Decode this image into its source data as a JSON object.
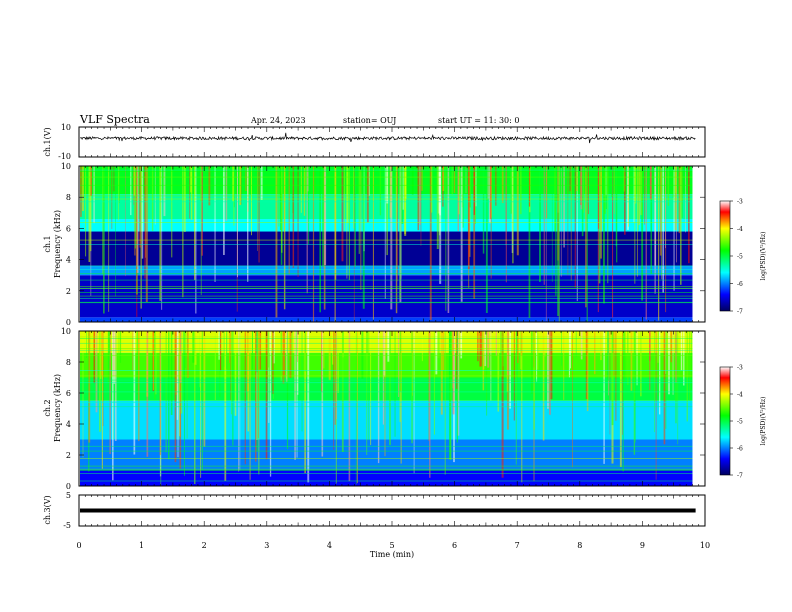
{
  "header": {
    "title": "VLF Spectra",
    "date": "Apr. 24, 2023",
    "station": "station= OUJ",
    "start": "start  UT =   11: 30: 0"
  },
  "xaxis_label": "Time  (min)",
  "chart_data": [
    {
      "type": "line",
      "panel": "ch1-waveform",
      "ylabel": "ch.1(V)",
      "ytick_labels": [
        "10",
        "-10"
      ],
      "ylim": [
        -10,
        10
      ],
      "xlim": [
        0,
        10
      ],
      "trace_level": 2.5,
      "noise_amplitude": 1.0,
      "color": "#000000"
    },
    {
      "type": "heatmap",
      "panel": "ch1-spectrogram",
      "ylabel": "ch.1\nFrequency  (kHz)",
      "ytick_labels": [
        "0",
        "2",
        "4",
        "6",
        "8",
        "10"
      ],
      "ylim": [
        0,
        10
      ],
      "xlim": [
        0,
        9.8
      ],
      "colorbar": {
        "label": "log(PSD)(V²/Hz)",
        "ticks": [
          "-3",
          "-4",
          "-5",
          "-6",
          "-7"
        ],
        "range": [
          -7,
          -3
        ]
      },
      "bands": [
        {
          "f0": 0.0,
          "f1": 0.3,
          "level": -6.2
        },
        {
          "f0": 0.3,
          "f1": 3.0,
          "level": -6.6
        },
        {
          "f0": 3.0,
          "f1": 3.6,
          "level": -5.9
        },
        {
          "f0": 3.6,
          "f1": 5.8,
          "level": -6.8
        },
        {
          "f0": 5.8,
          "f1": 6.6,
          "level": -5.6
        },
        {
          "f0": 6.6,
          "f1": 8.2,
          "level": -5.3
        },
        {
          "f0": 8.2,
          "f1": 10.0,
          "level": -4.9
        }
      ]
    },
    {
      "type": "heatmap",
      "panel": "ch2-spectrogram",
      "ylabel": "ch.2\nFrequency  (kHz)",
      "ytick_labels": [
        "0",
        "2",
        "4",
        "6",
        "8",
        "10"
      ],
      "ylim": [
        0,
        10
      ],
      "xlim": [
        0,
        9.8
      ],
      "colorbar": {
        "label": "log(PSD)(V²/Hz)",
        "ticks": [
          "-3",
          "-4",
          "-5",
          "-6",
          "-7"
        ],
        "range": [
          -7,
          -3
        ]
      },
      "bands": [
        {
          "f0": 0.0,
          "f1": 1.0,
          "level": -6.4
        },
        {
          "f0": 1.0,
          "f1": 3.0,
          "level": -6.0
        },
        {
          "f0": 3.0,
          "f1": 5.5,
          "level": -5.7
        },
        {
          "f0": 5.5,
          "f1": 7.0,
          "level": -5.0
        },
        {
          "f0": 7.0,
          "f1": 8.6,
          "level": -4.6
        },
        {
          "f0": 8.6,
          "f1": 10.0,
          "level": -4.1
        }
      ]
    },
    {
      "type": "line",
      "panel": "ch3-waveform",
      "ylabel": "ch.3(V)",
      "ytick_labels": [
        "5",
        "0",
        "-5"
      ],
      "ylim": [
        -5,
        5
      ],
      "xlim": [
        0,
        10
      ],
      "trace_level": 0.0,
      "color": "#000000"
    }
  ],
  "xtick_labels": [
    "0",
    "1",
    "2",
    "3",
    "4",
    "5",
    "6",
    "7",
    "8",
    "9",
    "10"
  ],
  "xlim": [
    0,
    10
  ]
}
